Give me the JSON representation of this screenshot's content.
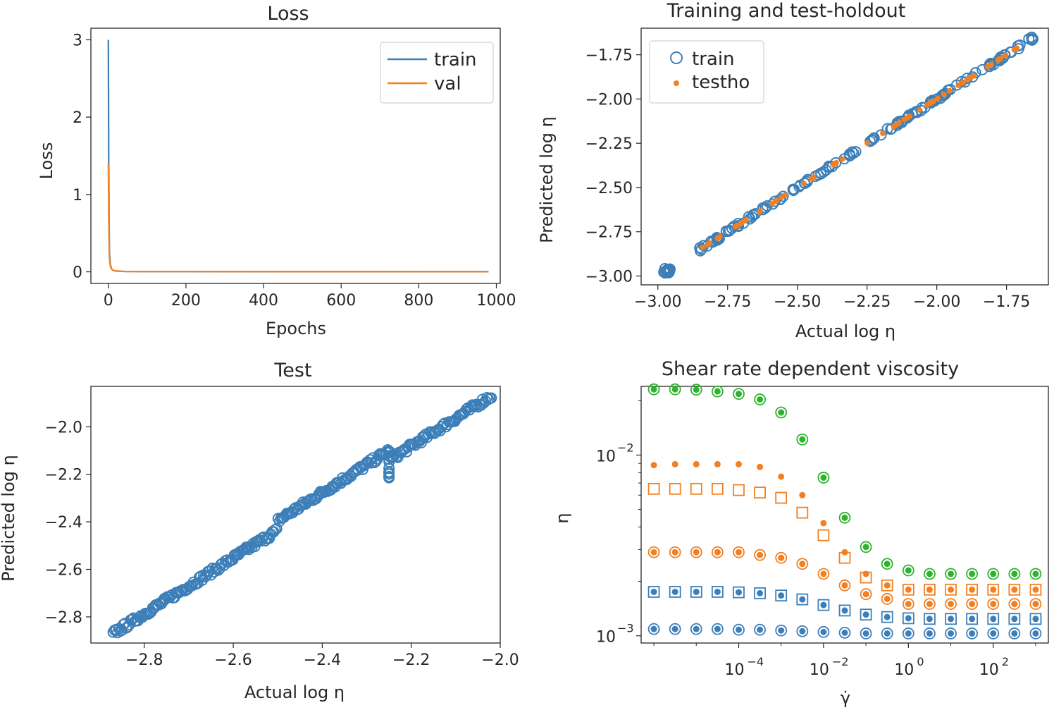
{
  "colors": {
    "blue": "#3c7fb8",
    "orange": "#f28022",
    "green": "#2fb32f",
    "axis": "#262626"
  },
  "chart_data": [
    {
      "id": "loss",
      "type": "line",
      "title": "Loss",
      "xlabel": "Epochs",
      "ylabel": "Loss",
      "xlim": [
        -45,
        1010
      ],
      "ylim": [
        -0.15,
        3.15
      ],
      "xticks": [
        0,
        200,
        400,
        600,
        800,
        1000
      ],
      "xtick_labels": [
        "0",
        "200",
        "400",
        "600",
        "800",
        "1000"
      ],
      "yticks": [
        0,
        1,
        2,
        3
      ],
      "ytick_labels": [
        "0",
        "1",
        "2",
        "3"
      ],
      "legend": [
        "train",
        "val"
      ],
      "legend_position": "top-right",
      "series": [
        {
          "name": "train",
          "x": [
            0,
            1,
            2,
            3,
            5,
            8,
            12,
            20,
            40,
            100,
            980
          ],
          "y": [
            3.0,
            1.4,
            0.6,
            0.25,
            0.1,
            0.04,
            0.02,
            0.01,
            0.005,
            0.003,
            0.002
          ]
        },
        {
          "name": "val",
          "x": [
            0,
            1,
            2,
            3,
            5,
            8,
            12,
            20,
            40,
            100,
            980
          ],
          "y": [
            1.4,
            0.8,
            0.4,
            0.18,
            0.08,
            0.04,
            0.02,
            0.01,
            0.005,
            0.003,
            0.002
          ]
        }
      ]
    },
    {
      "id": "train-testho",
      "type": "scatter",
      "title": "Training and test-holdout",
      "xlabel": "Actual log η",
      "ylabel": "Predicted log η",
      "xlim": [
        -3.06,
        -1.6
      ],
      "ylim": [
        -3.05,
        -1.6
      ],
      "xticks": [
        -3.0,
        -2.75,
        -2.5,
        -2.25,
        -2.0,
        -1.75
      ],
      "xtick_labels": [
        "−3.00",
        "−2.75",
        "−2.50",
        "−2.25",
        "−2.00",
        "−1.75"
      ],
      "yticks": [
        -3.0,
        -2.75,
        -2.5,
        -2.25,
        -2.0,
        -1.75
      ],
      "ytick_labels": [
        "−3.00",
        "−2.75",
        "−2.50",
        "−2.25",
        "−2.00",
        "−1.75"
      ],
      "legend": [
        "train",
        "testho"
      ],
      "legend_position": "top-left",
      "series": [
        {
          "name": "train",
          "marker": "open-circle",
          "x_range": [
            -2.85,
            -1.65
          ],
          "cluster": {
            "x": -2.97,
            "y": -2.97
          },
          "count": 140
        },
        {
          "name": "testho",
          "marker": "dot",
          "x_range": [
            -2.84,
            -1.66
          ],
          "count": 60
        }
      ]
    },
    {
      "id": "test",
      "type": "scatter",
      "title": "Test",
      "xlabel": "Actual log η",
      "ylabel": "Predicted log η",
      "xlim": [
        -2.92,
        -2.0
      ],
      "ylim": [
        -2.91,
        -1.83
      ],
      "xticks": [
        -2.8,
        -2.6,
        -2.4,
        -2.2,
        -2.0
      ],
      "xtick_labels": [
        "−2.8",
        "−2.6",
        "−2.4",
        "−2.2",
        "−2.0"
      ],
      "yticks": [
        -2.8,
        -2.6,
        -2.4,
        -2.2,
        -2.0
      ],
      "ytick_labels": [
        "−2.8",
        "−2.6",
        "−2.4",
        "−2.2",
        "−2.0"
      ],
      "series": [
        {
          "name": "test",
          "marker": "open-circle",
          "x_range": [
            -2.87,
            -2.02
          ],
          "y_range": [
            -2.87,
            -1.87
          ],
          "count": 260
        }
      ]
    },
    {
      "id": "shear",
      "type": "scatter",
      "title": "Shear rate dependent viscosity",
      "xlabel": "γ̇",
      "ylabel": "η",
      "xscale": "log",
      "yscale": "log",
      "xlim_log10": [
        -6.3,
        3.3
      ],
      "ylim_log10": [
        -3.04,
        -1.62
      ],
      "xticks_log10": [
        -4,
        -2,
        0,
        2
      ],
      "xtick_labels": [
        "10",
        "10",
        "10",
        "10"
      ],
      "xtick_exponents": [
        "−4",
        "−2",
        "0",
        "2"
      ],
      "yticks_log10": [
        -3,
        -2
      ],
      "ytick_labels": [
        "10",
        "10"
      ],
      "ytick_exponents": [
        "−3",
        "−2"
      ],
      "x": [
        -6,
        -5.5,
        -5,
        -4.5,
        -4,
        -3.5,
        -3,
        -2.5,
        -2,
        -1.5,
        -1,
        -0.5,
        0,
        0.5,
        1,
        1.5,
        2,
        2.5,
        3
      ],
      "series": [
        {
          "name": "green-actual",
          "color": "green",
          "marker": "open-circle",
          "y": [
            0.0231,
            0.0231,
            0.023,
            0.0225,
            0.0218,
            0.0203,
            0.0172,
            0.0122,
            0.0075,
            0.0045,
            0.0031,
            0.0025,
            0.0023,
            0.0022,
            0.0022,
            0.0022,
            0.0022,
            0.0022,
            0.0022
          ]
        },
        {
          "name": "green-pred",
          "color": "green",
          "marker": "dot",
          "y": [
            0.0231,
            0.0231,
            0.023,
            0.0225,
            0.0218,
            0.0203,
            0.0172,
            0.0122,
            0.0075,
            0.0045,
            0.0031,
            0.0025,
            0.0023,
            0.0022,
            0.0022,
            0.0022,
            0.0022,
            0.0022,
            0.0022
          ]
        },
        {
          "name": "orange-sq-actual",
          "color": "orange",
          "marker": "open-square",
          "y": [
            0.0065,
            0.0065,
            0.0065,
            0.0065,
            0.0064,
            0.0062,
            0.0058,
            0.0048,
            0.0036,
            0.0027,
            0.0021,
            0.0019,
            0.0018,
            0.0018,
            0.0018,
            0.0018,
            0.0018,
            0.0018,
            0.0018
          ]
        },
        {
          "name": "orange-dot-pred",
          "color": "orange",
          "marker": "dot",
          "y": [
            0.0088,
            0.0089,
            0.0089,
            0.0089,
            0.0089,
            0.0086,
            0.0076,
            0.006,
            0.0042,
            0.0029,
            0.0022,
            0.0019,
            0.0018,
            0.0018,
            0.0018,
            0.0018,
            0.0018,
            0.0018,
            0.0018
          ]
        },
        {
          "name": "orange-circ-actual",
          "color": "orange",
          "marker": "open-circle",
          "y": [
            0.0029,
            0.0029,
            0.0029,
            0.0029,
            0.0029,
            0.0028,
            0.0027,
            0.0025,
            0.0022,
            0.0019,
            0.0017,
            0.0016,
            0.0015,
            0.0015,
            0.0015,
            0.0015,
            0.0015,
            0.0015,
            0.0015
          ]
        },
        {
          "name": "orange-circ-pred",
          "color": "orange",
          "marker": "dot",
          "y": [
            0.0029,
            0.0029,
            0.0029,
            0.0029,
            0.0029,
            0.0028,
            0.0027,
            0.0025,
            0.0022,
            0.0019,
            0.0017,
            0.0016,
            0.0015,
            0.0015,
            0.0015,
            0.0015,
            0.0015,
            0.0015,
            0.0015
          ]
        },
        {
          "name": "blue-sq-actual",
          "color": "blue",
          "marker": "open-square",
          "y": [
            0.00175,
            0.00175,
            0.00175,
            0.00175,
            0.00174,
            0.00172,
            0.00167,
            0.00159,
            0.00148,
            0.00138,
            0.00131,
            0.00127,
            0.00125,
            0.00124,
            0.00124,
            0.00124,
            0.00124,
            0.00124,
            0.00124
          ]
        },
        {
          "name": "blue-sq-pred",
          "color": "blue",
          "marker": "dot",
          "y": [
            0.00175,
            0.00175,
            0.00175,
            0.00175,
            0.00174,
            0.00172,
            0.00167,
            0.00159,
            0.00148,
            0.00138,
            0.00131,
            0.00127,
            0.00125,
            0.00124,
            0.00124,
            0.00124,
            0.00124,
            0.00124,
            0.00124
          ]
        },
        {
          "name": "blue-circ-actual",
          "color": "blue",
          "marker": "open-circle",
          "y": [
            0.00109,
            0.00109,
            0.00109,
            0.00109,
            0.00108,
            0.00108,
            0.00107,
            0.00106,
            0.00105,
            0.00104,
            0.00103,
            0.00103,
            0.00103,
            0.00103,
            0.00103,
            0.00103,
            0.00103,
            0.00103,
            0.00103
          ]
        },
        {
          "name": "blue-circ-pred",
          "color": "blue",
          "marker": "dot",
          "y": [
            0.00109,
            0.00109,
            0.00109,
            0.00109,
            0.00108,
            0.00108,
            0.00107,
            0.00106,
            0.00105,
            0.00104,
            0.00103,
            0.00103,
            0.00103,
            0.00103,
            0.00103,
            0.00103,
            0.00103,
            0.00103,
            0.00103
          ]
        }
      ]
    }
  ]
}
